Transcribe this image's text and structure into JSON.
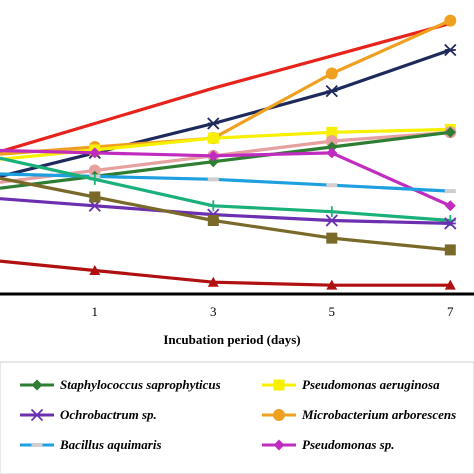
{
  "chart_data": {
    "type": "line",
    "title": "",
    "xlabel": "Incubation period (days)",
    "ylabel": "",
    "x": [
      1,
      3,
      5,
      7
    ],
    "xlim": [
      -0.6,
      7.4
    ],
    "ylim": [
      0,
      100
    ],
    "grid": false,
    "legend_position": "bottom",
    "series": [
      {
        "name": "",
        "color": "#e8231c",
        "marker": "none",
        "values": [
          58,
          70,
          81,
          92
        ]
      },
      {
        "name": "",
        "color": "#1f2a5c",
        "marker": "asterisk",
        "values": [
          48,
          58,
          69,
          83
        ]
      },
      {
        "name": "Microbacterium arborescens",
        "color": "#f0a020",
        "marker": "circle",
        "values": [
          50,
          53,
          75,
          93
        ]
      },
      {
        "name": "Pseudomonas aeruginosa",
        "color": "#f7f000",
        "marker": "square",
        "values": [
          49,
          53,
          55,
          56
        ]
      },
      {
        "name": "",
        "color": "#e6a0a0",
        "marker": "circle",
        "values": [
          42,
          47,
          52,
          55
        ]
      },
      {
        "name": "Staphylococcus saprophyticus",
        "color": "#2e7d32",
        "marker": "diamond",
        "values": [
          40,
          45,
          50,
          55
        ]
      },
      {
        "name": "Pseudomonas sp.",
        "color": "#c02cc0",
        "marker": "diamond",
        "values": [
          48,
          47,
          48,
          30
        ]
      },
      {
        "name": "Bacillus aquimaris",
        "color": "#1ea0e0",
        "marker": "dash",
        "values": [
          40,
          39,
          37,
          35
        ]
      },
      {
        "name": "",
        "color": "#1ab07a",
        "marker": "plus",
        "values": [
          39,
          30,
          28,
          25
        ]
      },
      {
        "name": "Ochrobactrum sp.",
        "color": "#6b2fb0",
        "marker": "asterisk",
        "values": [
          30,
          27,
          25,
          24
        ]
      },
      {
        "name": "",
        "color": "#7a6a2a",
        "marker": "square",
        "values": [
          33,
          25,
          19,
          15
        ]
      },
      {
        "name": "",
        "color": "#b01010",
        "marker": "triangle",
        "values": [
          8,
          4,
          3,
          3
        ]
      }
    ],
    "legend": [
      {
        "label": "Staphylococcus saprophyticus",
        "color": "#2e7d32",
        "marker": "diamond"
      },
      {
        "label": "Pseudomonas aeruginosa",
        "color": "#f7f000",
        "marker": "square"
      },
      {
        "label": "Ochrobactrum sp.",
        "color": "#6b2fb0",
        "marker": "asterisk"
      },
      {
        "label": "Microbacterium arborescens",
        "color": "#f0a020",
        "marker": "circle"
      },
      {
        "label": "Bacillus aquimaris",
        "color": "#1ea0e0",
        "marker": "dash"
      },
      {
        "label": "Pseudomonas sp.",
        "color": "#c02cc0",
        "marker": "diamond"
      }
    ]
  }
}
